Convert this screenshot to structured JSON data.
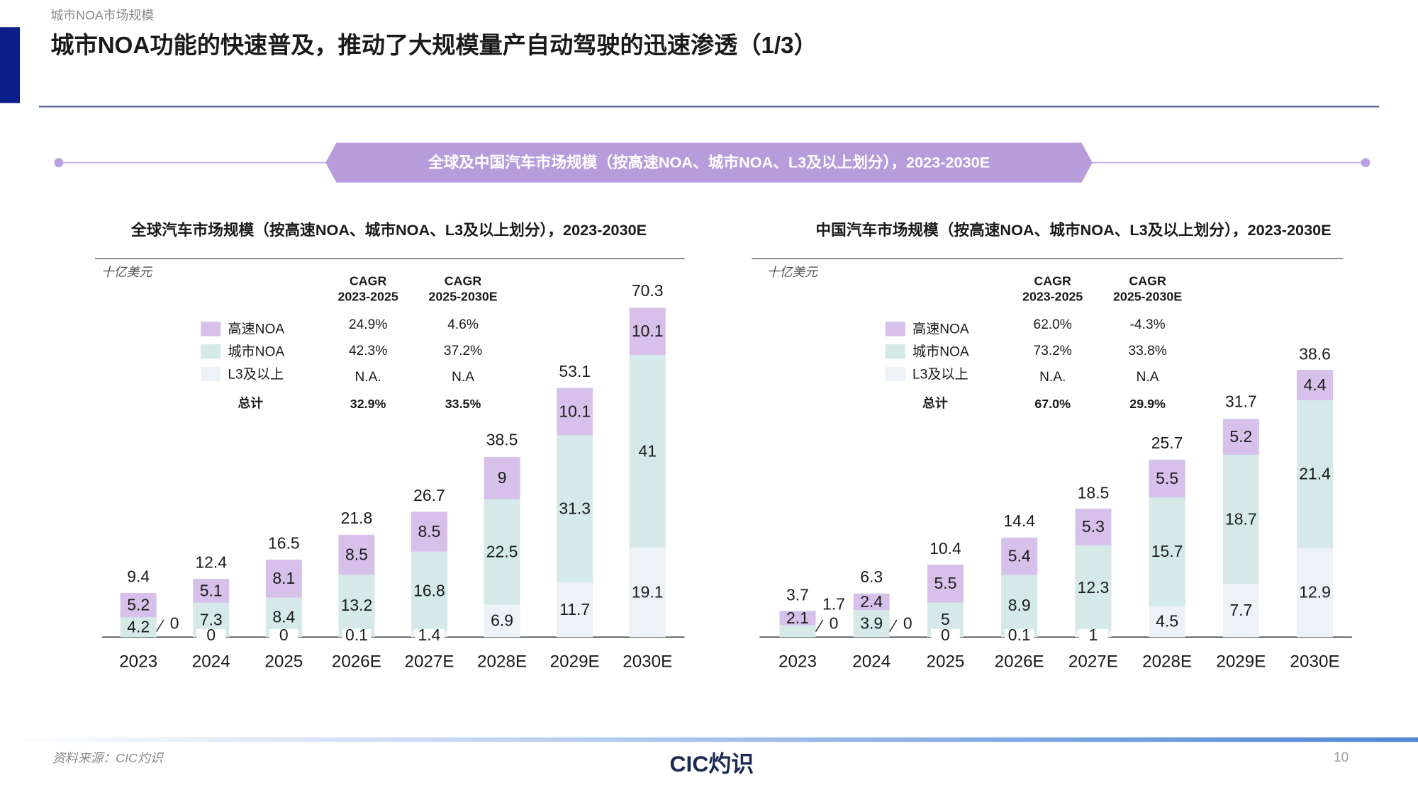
{
  "header": {
    "section": "城市NOA市场规模",
    "title": "城市NOA功能的快速普及，推动了大规模量产自动驾驶的迅速渗透（1/3）"
  },
  "banner": "全球及中国汽车市场规模（按高速NOA、城市NOA、L3及以上划分），2023-2030E",
  "chart_data": [
    {
      "type": "bar",
      "stacked": true,
      "title": "全球汽车市场规模（按高速NOA、城市NOA、L3及以上划分），2023-2030E",
      "unit": "十亿美元",
      "categories": [
        "2023",
        "2024",
        "2025",
        "2026E",
        "2027E",
        "2028E",
        "2029E",
        "2030E"
      ],
      "series": [
        {
          "name": "高速NOA",
          "color": "#d7c1ea",
          "values": [
            5.2,
            5.1,
            8.1,
            8.5,
            8.5,
            9.0,
            10.1,
            10.1
          ]
        },
        {
          "name": "城市NOA",
          "color": "#d4e9e8",
          "values": [
            4.2,
            7.3,
            8.4,
            13.2,
            16.8,
            22.5,
            31.3,
            41.0
          ]
        },
        {
          "name": "L3及以上",
          "color": "#edf2f8",
          "values": [
            0.0,
            0.0,
            0.0,
            0.1,
            1.4,
            6.9,
            11.7,
            19.1
          ]
        }
      ],
      "totals": [
        9.4,
        12.4,
        16.5,
        21.8,
        26.7,
        38.5,
        53.1,
        70.3
      ],
      "ylim": [
        0,
        78
      ],
      "cagr": {
        "headers": [
          [
            "CAGR",
            "2023-2025"
          ],
          [
            "CAGR",
            "2025-2030E"
          ]
        ],
        "rows": [
          [
            "24.9%",
            "4.6%"
          ],
          [
            "42.3%",
            "37.2%"
          ],
          [
            "N.A.",
            "N.A"
          ]
        ],
        "total_label": "总计",
        "total": [
          "32.9%",
          "33.5%"
        ]
      }
    },
    {
      "type": "bar",
      "stacked": true,
      "title": "中国汽车市场规模（按高速NOA、城市NOA、L3及以上划分），2023-2030E",
      "unit": "十亿美元",
      "categories": [
        "2023",
        "2024",
        "2025",
        "2026E",
        "2027E",
        "2028E",
        "2029E",
        "2030E"
      ],
      "series": [
        {
          "name": "高速NOA",
          "color": "#d7c1ea",
          "values": [
            2.1,
            2.4,
            5.5,
            5.4,
            5.3,
            5.5,
            5.2,
            4.4
          ]
        },
        {
          "name": "城市NOA",
          "color": "#d4e9e8",
          "values": [
            1.7,
            3.9,
            5.0,
            8.9,
            12.3,
            15.7,
            18.7,
            21.4
          ]
        },
        {
          "name": "L3及以上",
          "color": "#edf2f8",
          "values": [
            0.0,
            0.0,
            0.0,
            0.1,
            1.0,
            4.5,
            7.7,
            12.9
          ]
        }
      ],
      "totals": [
        3.7,
        6.3,
        10.4,
        14.4,
        18.5,
        25.7,
        31.7,
        38.6
      ],
      "ylim": [
        0,
        53
      ],
      "cagr": {
        "headers": [
          [
            "CAGR",
            "2023-2025"
          ],
          [
            "CAGR",
            "2025-2030E"
          ]
        ],
        "rows": [
          [
            "62.0%",
            "-4.3%"
          ],
          [
            "73.2%",
            "33.8%"
          ],
          [
            "N.A.",
            "N.A"
          ]
        ],
        "total_label": "总计",
        "total": [
          "67.0%",
          "29.9%"
        ]
      }
    }
  ],
  "footer": {
    "source": "资料来源：CIC灼识",
    "logo": "CIC灼识",
    "page": 10
  }
}
